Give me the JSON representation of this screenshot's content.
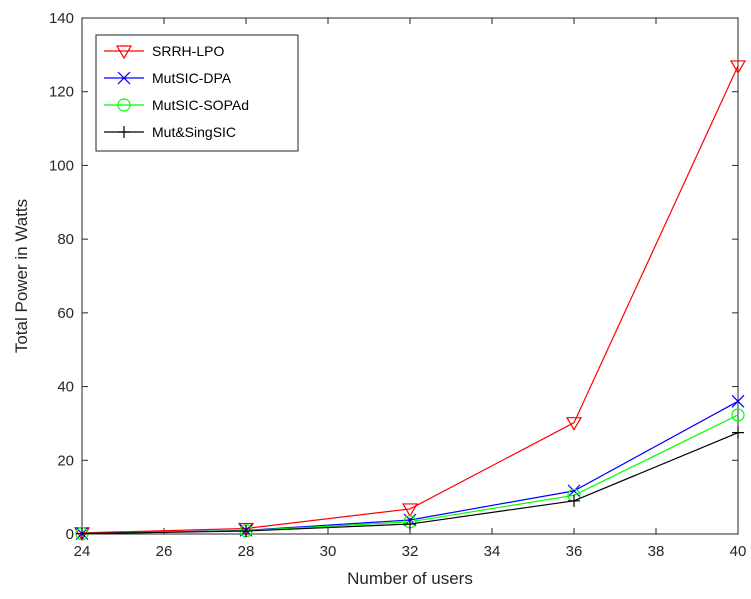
{
  "chart_data": {
    "type": "line",
    "title": "",
    "xlabel": "Number of users",
    "ylabel": "Total Power in Watts",
    "xlim": [
      24,
      40
    ],
    "ylim": [
      0,
      140
    ],
    "x_ticks": [
      24,
      26,
      28,
      30,
      32,
      34,
      36,
      38,
      40
    ],
    "y_ticks": [
      0,
      20,
      40,
      60,
      80,
      100,
      120,
      140
    ],
    "x": [
      24,
      28,
      32,
      36,
      40
    ],
    "grid": false,
    "legend_position": "top-left",
    "series": [
      {
        "name": "SRRH-LPO",
        "color": "#ff0000",
        "marker": "triangle-down",
        "values": [
          0.3,
          1.5,
          6.8,
          30.2,
          127
        ]
      },
      {
        "name": "MutSIC-DPA",
        "color": "#0000ff",
        "marker": "x",
        "values": [
          0.1,
          1.0,
          3.8,
          11.7,
          36
        ]
      },
      {
        "name": "MutSIC-SOPAd",
        "color": "#00ff00",
        "marker": "circle",
        "values": [
          0.1,
          0.9,
          3.3,
          10.5,
          32.3
        ]
      },
      {
        "name": "Mut&SingSIC",
        "color": "#000000",
        "marker": "plus",
        "values": [
          0.1,
          0.8,
          2.7,
          9.0,
          27.5
        ]
      }
    ]
  }
}
